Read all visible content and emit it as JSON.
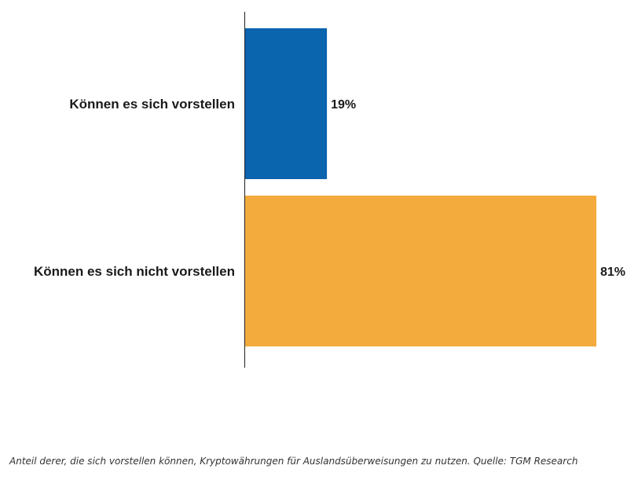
{
  "chart_data": {
    "type": "bar",
    "orientation": "horizontal",
    "categories": [
      "Können es sich vorstellen",
      "Können es sich nicht vorstellen"
    ],
    "values": [
      19,
      81
    ],
    "value_labels": [
      "19%",
      "81%"
    ],
    "colors": [
      "#0a64ae",
      "#f2ab3c"
    ],
    "xlim": [
      0,
      81
    ],
    "title": "",
    "xlabel": "",
    "ylabel": "",
    "grid": false,
    "legend": "none"
  },
  "caption": "Anteil derer, die sich vorstellen können, Kryptowährungen für Auslandsüberweisungen zu nutzen. Quelle: TGM Research"
}
